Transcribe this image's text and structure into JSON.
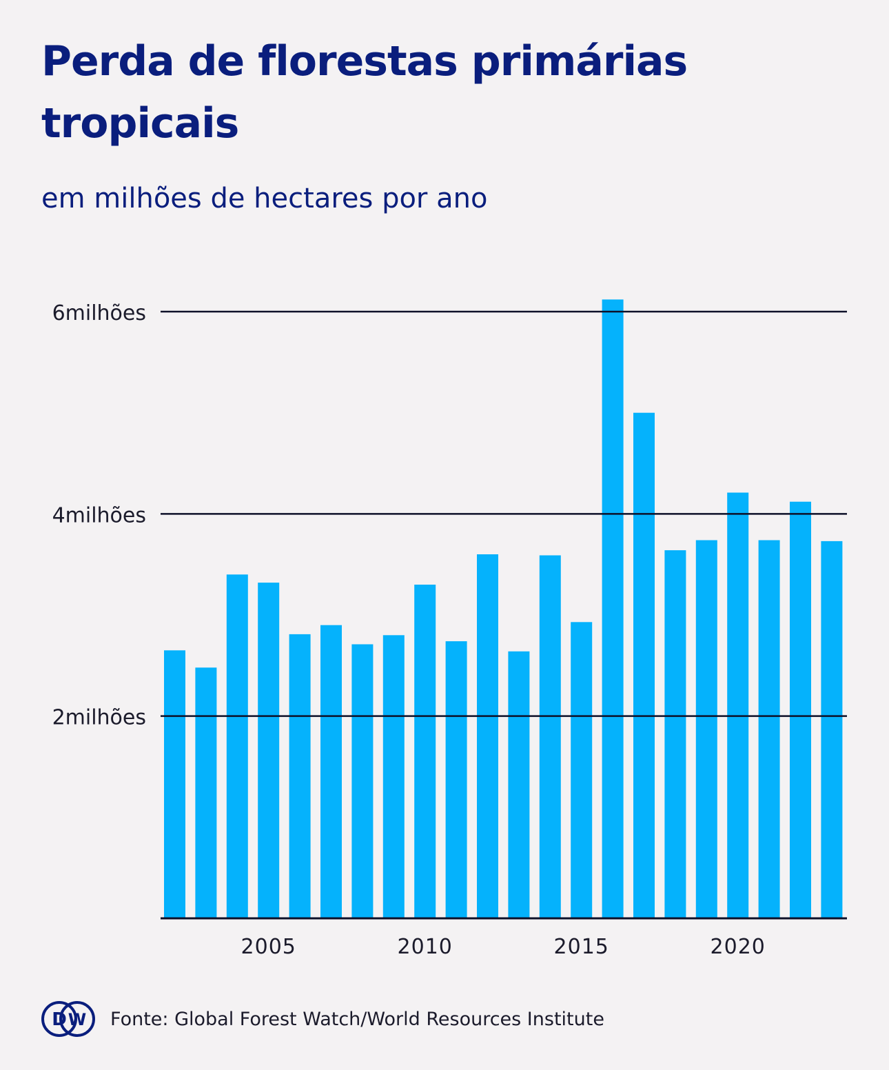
{
  "title": "Perda de florestas primárias tropicais",
  "subtitle": "em milhões de hectares por ano",
  "source": "Fonte: Global Forest Watch/World Resources Institute",
  "logo": {
    "name": "dw-logo",
    "text": "DW"
  },
  "colors": {
    "background": "#f4f2f3",
    "bar": "#05b2fc",
    "title": "#0a1e7d",
    "grid": "#0d1028",
    "text": "#1b1b2b"
  },
  "chart_data": {
    "type": "bar",
    "title": "Perda de florestas primárias tropicais",
    "subtitle": "em milhões de hectares por ano",
    "xlabel": "",
    "ylabel": "",
    "categories": [
      2002,
      2003,
      2004,
      2005,
      2006,
      2007,
      2008,
      2009,
      2010,
      2011,
      2012,
      2013,
      2014,
      2015,
      2016,
      2017,
      2018,
      2019,
      2020,
      2021,
      2022,
      2023
    ],
    "values": [
      2.65,
      2.48,
      3.4,
      3.32,
      2.81,
      2.9,
      2.71,
      2.8,
      3.3,
      2.74,
      3.6,
      2.64,
      3.59,
      2.93,
      6.12,
      5.0,
      3.64,
      3.74,
      4.21,
      3.74,
      4.12,
      3.73
    ],
    "x_ticks": [
      2005,
      2010,
      2015,
      2020
    ],
    "x_tick_labels": [
      "2005",
      "2010",
      "2015",
      "2020"
    ],
    "y_ticks": [
      2,
      4,
      6
    ],
    "y_tick_labels": [
      "2milhões",
      "4milhões",
      "6milhões"
    ],
    "ylim": [
      0,
      6
    ],
    "grid": true,
    "legend": "none"
  }
}
